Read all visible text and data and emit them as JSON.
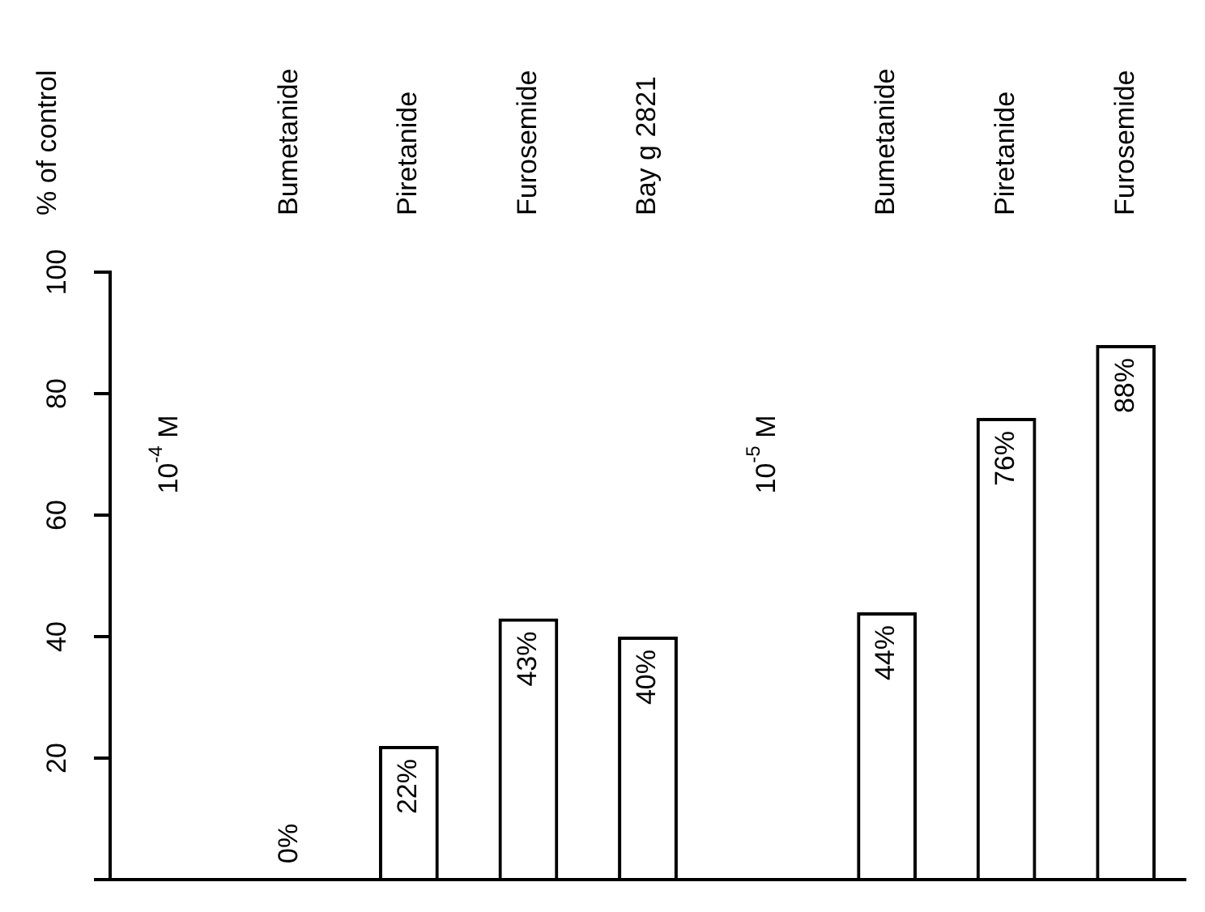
{
  "chart_data": {
    "type": "bar",
    "ylabel": "% of control",
    "categories": [
      null,
      "Bumetanide",
      "Piretanide",
      "Furosemide",
      "Bay g 2821",
      null,
      "Bumetanide",
      "Piretanide",
      "Furosemide"
    ],
    "values": [
      null,
      0,
      22,
      43,
      40,
      null,
      44,
      76,
      88
    ],
    "value_labels": [
      null,
      "0%",
      "22%",
      "43%",
      "40%",
      null,
      "44%",
      "76%",
      "88%"
    ],
    "color": "#000000",
    "annotations": [
      "10$^{-4}$ M",
      "10$^{-5}$ M"
    ],
    "ylim": [
      0,
      100
    ],
    "yticks": [
      {
        "value": 0,
        "label": null
      },
      20,
      40,
      60,
      80,
      100
    ],
    "grid": false,
    "legend": false
  }
}
